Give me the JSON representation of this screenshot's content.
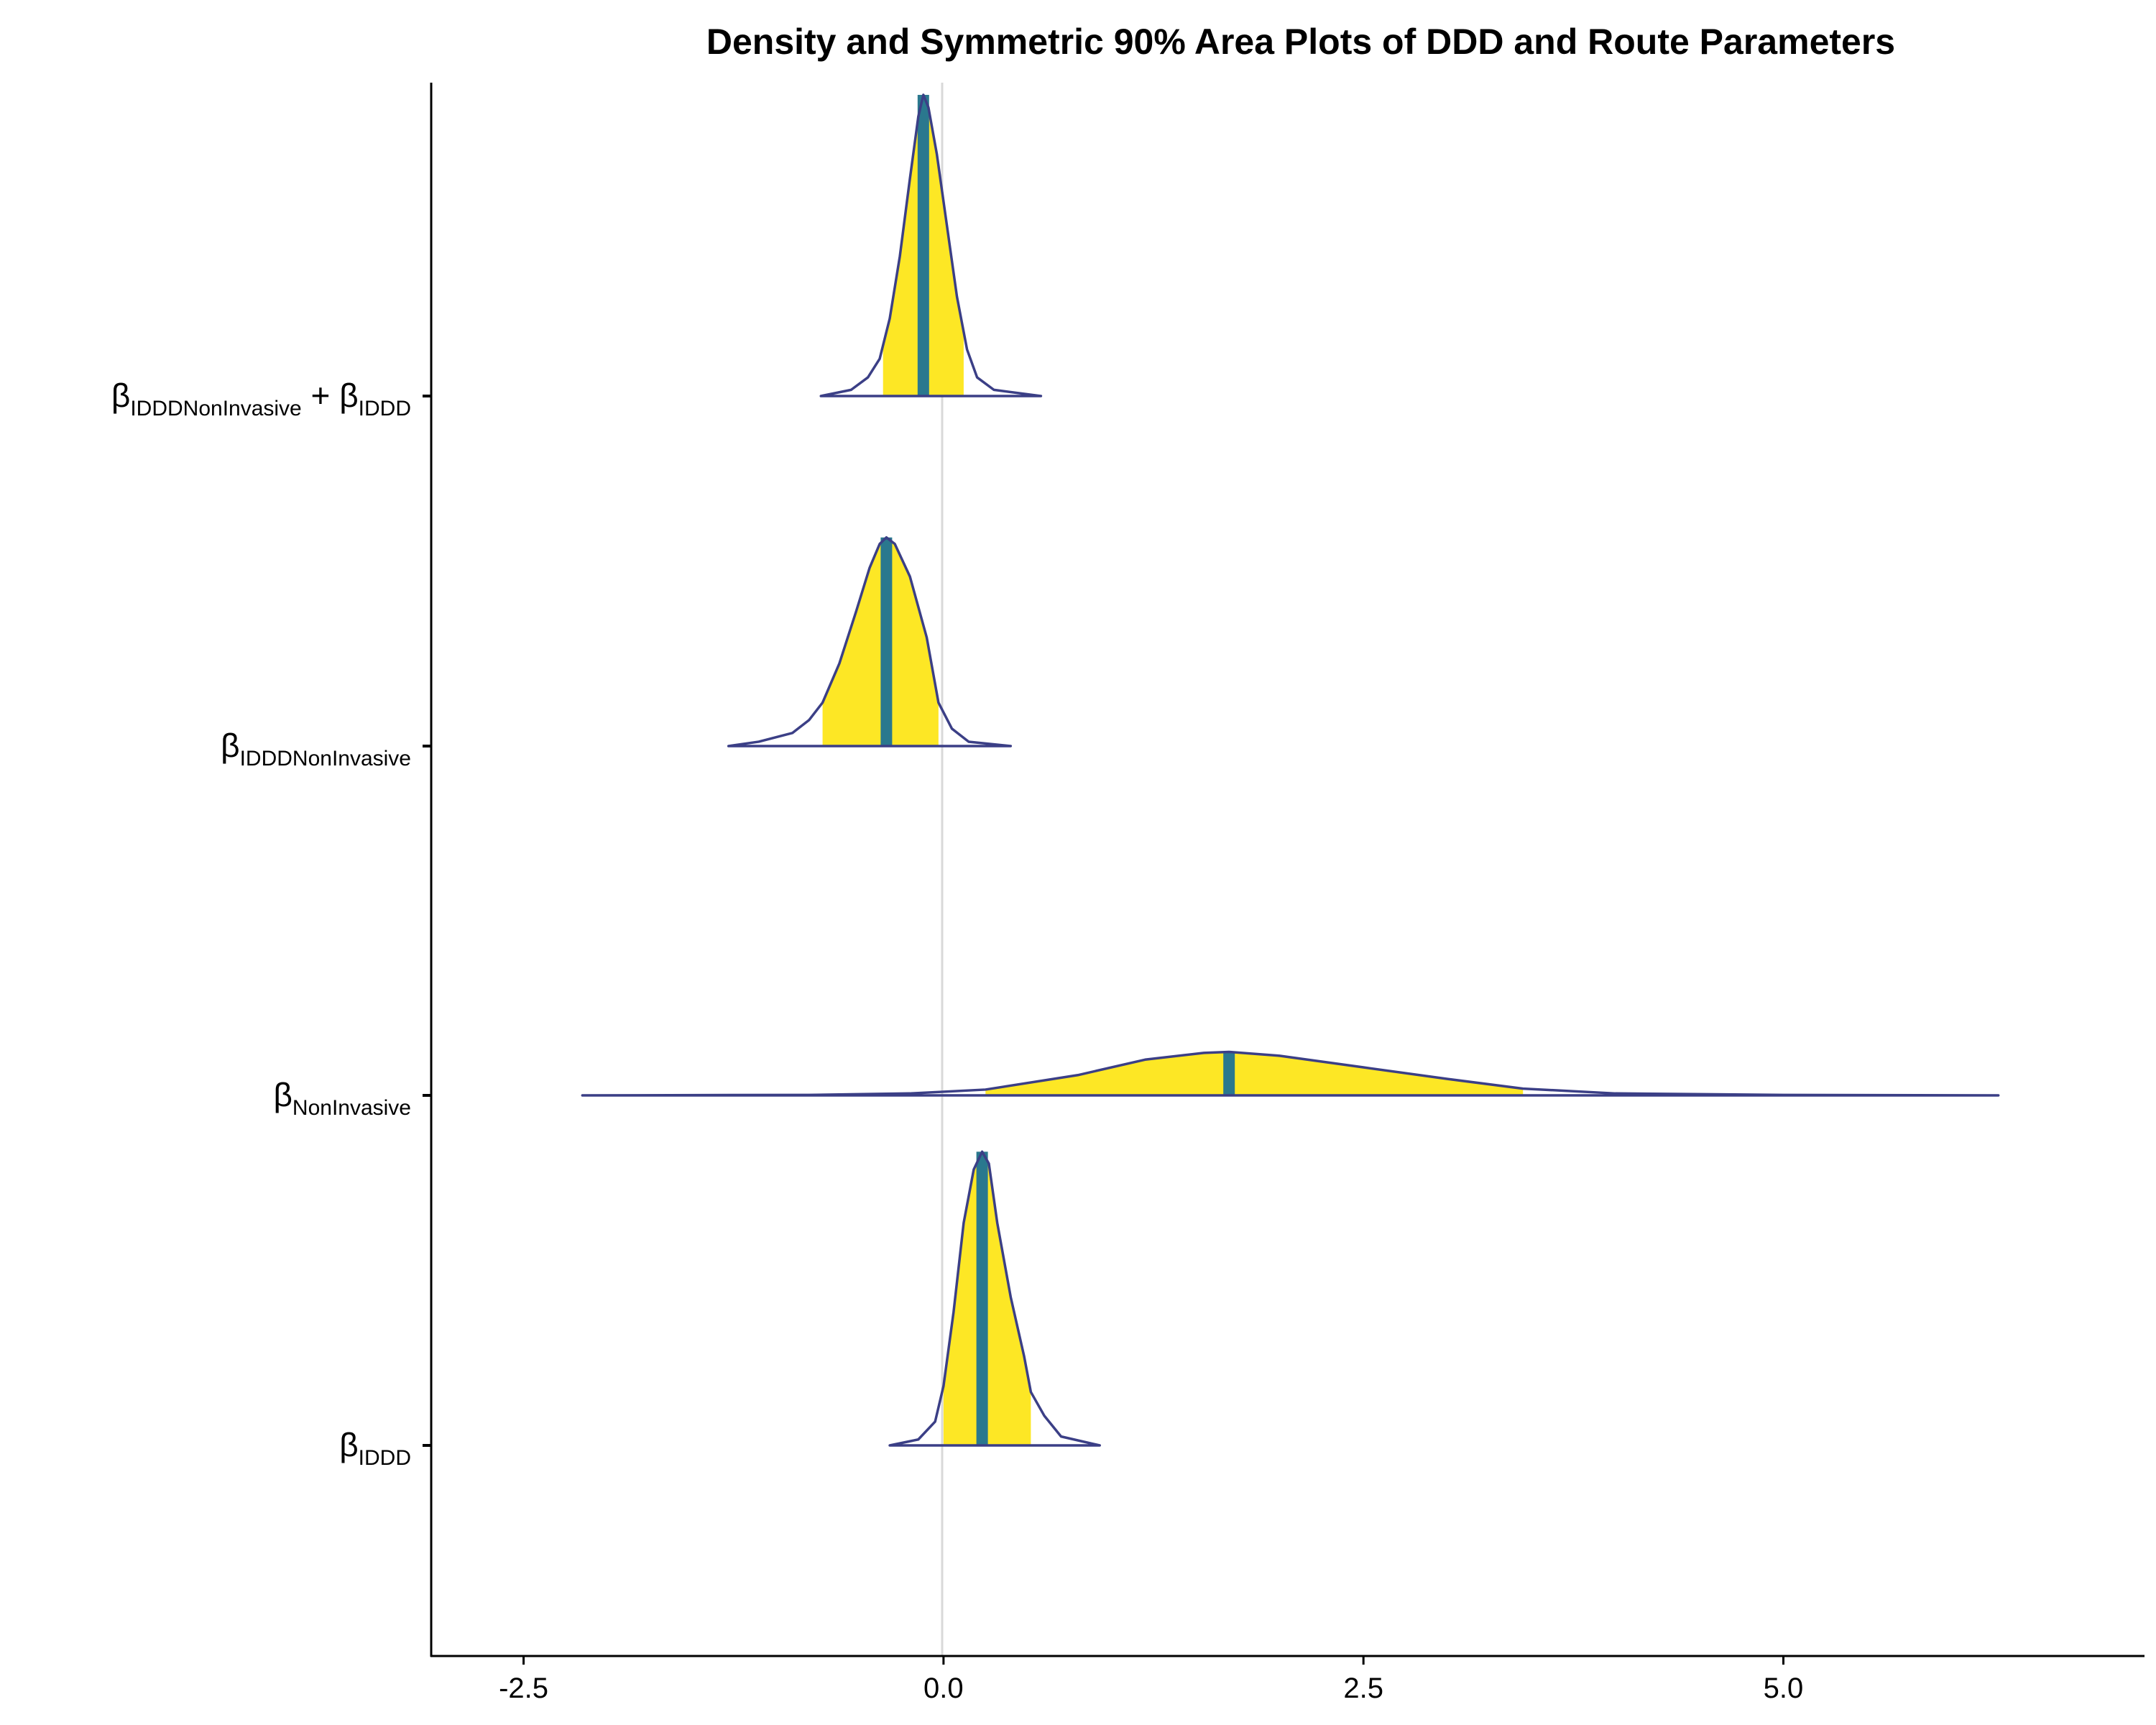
{
  "chart_data": {
    "type": "density-area",
    "title": "Density and Symmetric 90% Area Plots of DDD and Route Parameters",
    "xlabel": "",
    "ylabel": "",
    "xlim": [
      -3.05,
      7.15
    ],
    "x_ticks": [
      -2.5,
      0.0,
      2.5,
      5.0
    ],
    "x_tick_labels": [
      "-2.5",
      "0.0",
      "2.5",
      "5.0"
    ],
    "reference_line_x": 0,
    "colors": {
      "interval_fill": "#FDE725",
      "median_line": "#2A788E",
      "outline": "#3B3F86",
      "reference_line": "#D9D9D9",
      "axis": "#000000"
    },
    "parameters": [
      {
        "id": "sum",
        "label_parts": [
          {
            "text": "β",
            "sub": "IDDDNonInvasive"
          },
          {
            "text": " + "
          },
          {
            "text": "β",
            "sub": "IDDD"
          }
        ],
        "median": -0.12,
        "interval": [
          -0.36,
          0.12
        ],
        "range": [
          -0.73,
          0.58
        ],
        "relative_height": 0.9,
        "density": [
          [
            -0.73,
            0
          ],
          [
            -0.55,
            0.02
          ],
          [
            -0.45,
            0.06
          ],
          [
            -0.38,
            0.12
          ],
          [
            -0.32,
            0.25
          ],
          [
            -0.26,
            0.45
          ],
          [
            -0.2,
            0.7
          ],
          [
            -0.15,
            0.9
          ],
          [
            -0.12,
            0.97
          ],
          [
            -0.09,
            0.93
          ],
          [
            -0.04,
            0.78
          ],
          [
            0.02,
            0.55
          ],
          [
            0.08,
            0.32
          ],
          [
            0.14,
            0.15
          ],
          [
            0.2,
            0.06
          ],
          [
            0.3,
            0.02
          ],
          [
            0.58,
            0
          ]
        ]
      },
      {
        "id": "idddnoninvasive",
        "label_parts": [
          {
            "text": "β",
            "sub": "IDDDNonInvasive"
          }
        ],
        "median": -0.34,
        "interval": [
          -0.72,
          -0.03
        ],
        "range": [
          -1.28,
          0.4
        ],
        "relative_height": 0.63,
        "density": [
          [
            -1.28,
            0
          ],
          [
            -1.1,
            0.02
          ],
          [
            -0.9,
            0.06
          ],
          [
            -0.8,
            0.12
          ],
          [
            -0.72,
            0.2
          ],
          [
            -0.62,
            0.38
          ],
          [
            -0.52,
            0.62
          ],
          [
            -0.44,
            0.82
          ],
          [
            -0.38,
            0.93
          ],
          [
            -0.34,
            0.96
          ],
          [
            -0.29,
            0.93
          ],
          [
            -0.2,
            0.78
          ],
          [
            -0.1,
            0.5
          ],
          [
            -0.03,
            0.2
          ],
          [
            0.05,
            0.08
          ],
          [
            0.15,
            0.02
          ],
          [
            0.4,
            0
          ]
        ]
      },
      {
        "id": "noninvasive",
        "label_parts": [
          {
            "text": "β",
            "sub": "NonInvasive"
          }
        ],
        "median": 1.7,
        "interval": [
          0.25,
          3.45
        ],
        "range": [
          -2.15,
          6.28
        ],
        "relative_height": 0.14,
        "density": [
          [
            -2.15,
            0
          ],
          [
            -0.8,
            0.01
          ],
          [
            -0.2,
            0.04
          ],
          [
            0.25,
            0.12
          ],
          [
            0.8,
            0.42
          ],
          [
            1.2,
            0.74
          ],
          [
            1.55,
            0.88
          ],
          [
            1.7,
            0.9
          ],
          [
            2.0,
            0.82
          ],
          [
            2.5,
            0.58
          ],
          [
            3.0,
            0.34
          ],
          [
            3.45,
            0.14
          ],
          [
            4.0,
            0.04
          ],
          [
            5.0,
            0.01
          ],
          [
            6.28,
            0
          ]
        ]
      },
      {
        "id": "iddd",
        "label_parts": [
          {
            "text": "β",
            "sub": "IDDD"
          }
        ],
        "median": 0.23,
        "interval": [
          0.0,
          0.52
        ],
        "range": [
          -0.32,
          0.93
        ],
        "relative_height": 0.86,
        "density": [
          [
            -0.32,
            0
          ],
          [
            -0.15,
            0.02
          ],
          [
            -0.05,
            0.08
          ],
          [
            0.0,
            0.2
          ],
          [
            0.06,
            0.45
          ],
          [
            0.12,
            0.75
          ],
          [
            0.18,
            0.93
          ],
          [
            0.23,
            0.99
          ],
          [
            0.27,
            0.95
          ],
          [
            0.32,
            0.75
          ],
          [
            0.4,
            0.5
          ],
          [
            0.48,
            0.3
          ],
          [
            0.52,
            0.18
          ],
          [
            0.6,
            0.1
          ],
          [
            0.7,
            0.03
          ],
          [
            0.93,
            0
          ]
        ]
      }
    ]
  }
}
